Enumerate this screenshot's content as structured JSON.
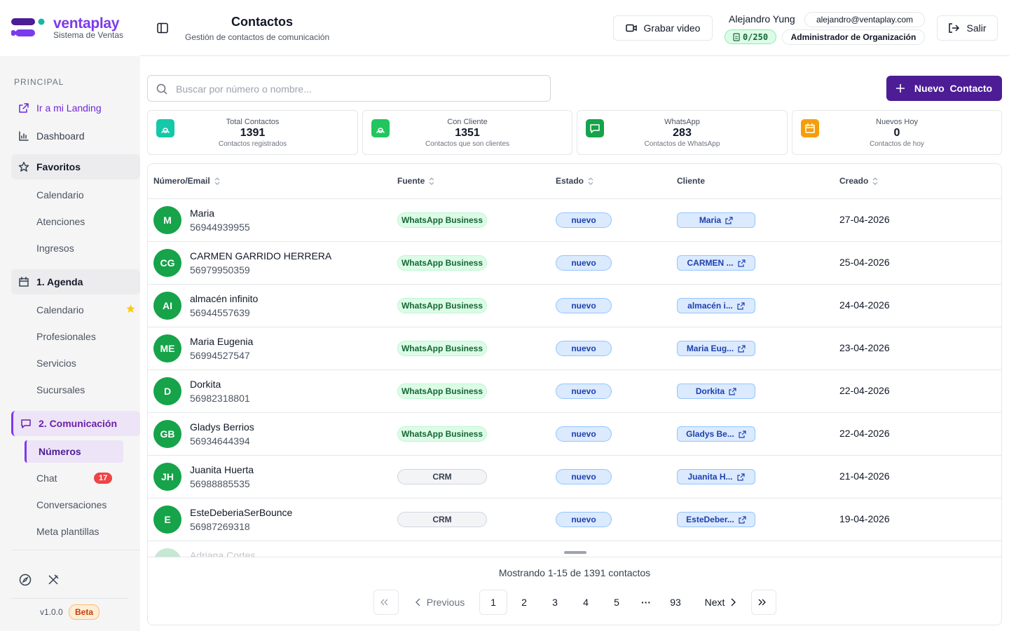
{
  "brand": {
    "name": "ventaplay",
    "tagline": "Sistema de Ventas"
  },
  "sidebar": {
    "section": "PRINCIPAL",
    "items": [
      {
        "label": "Ir a mi Landing",
        "kind": "link",
        "accent": true
      },
      {
        "label": "Dashboard",
        "kind": "link"
      },
      {
        "label": "Favoritos",
        "kind": "group"
      },
      {
        "label": "Calendario",
        "kind": "sub"
      },
      {
        "label": "Atenciones",
        "kind": "sub"
      },
      {
        "label": "Ingresos",
        "kind": "sub"
      },
      {
        "label": "1. Agenda",
        "kind": "group"
      },
      {
        "label": "Calendario",
        "kind": "sub",
        "starred": true
      },
      {
        "label": "Profesionales",
        "kind": "sub"
      },
      {
        "label": "Servicios",
        "kind": "sub"
      },
      {
        "label": "Sucursales",
        "kind": "sub"
      },
      {
        "label": "2. Comunicación",
        "kind": "group",
        "active": true
      },
      {
        "label": "Números",
        "kind": "sub",
        "active": true
      },
      {
        "label": "Chat",
        "kind": "sub",
        "badge": 17
      },
      {
        "label": "Conversaciones",
        "kind": "sub"
      },
      {
        "label": "Meta plantillas",
        "kind": "sub"
      }
    ],
    "version": "v1.0.0",
    "version_tag": "Beta"
  },
  "header": {
    "title": "Contactos",
    "subtitle": "Gestión de contactos de comunicación",
    "record_button": "Grabar video",
    "user_name": "Alejandro Yung",
    "user_email": "alejandro@ventaplay.com",
    "quota": "0/250",
    "role": "Administrador de Organización",
    "logout": "Salir"
  },
  "toolbar": {
    "search_placeholder": "Buscar por número o nombre...",
    "new_button": "Nuevo  Contacto"
  },
  "stats": [
    {
      "label": "Total Contactos",
      "value": 1391,
      "caption": "Contactos registrados"
    },
    {
      "label": "Con Cliente",
      "value": 1351,
      "caption": "Contactos que son clientes"
    },
    {
      "label": "WhatsApp",
      "value": 283,
      "caption": "Contactos de WhatsApp"
    },
    {
      "label": "Nuevos Hoy",
      "value": 0,
      "caption": "Contactos de hoy"
    }
  ],
  "table": {
    "columns": [
      "Número/Email",
      "Fuente",
      "Estado",
      "Cliente",
      "Creado"
    ],
    "rows": [
      {
        "initials": "M",
        "name": "Maria",
        "number": "56944939955",
        "source": "WhatsApp Business",
        "status": "nuevo",
        "client": "Maria",
        "created": "27-04-2026"
      },
      {
        "initials": "CG",
        "name": "CARMEN GARRIDO HERRERA",
        "number": "56979950359",
        "source": "WhatsApp Business",
        "status": "nuevo",
        "client": "CARMEN ...",
        "created": "25-04-2026"
      },
      {
        "initials": "AI",
        "name": "almacén infinito",
        "number": "56944557639",
        "source": "WhatsApp Business",
        "status": "nuevo",
        "client": "almacén i...",
        "created": "24-04-2026"
      },
      {
        "initials": "ME",
        "name": "Maria Eugenia",
        "number": "56994527547",
        "source": "WhatsApp Business",
        "status": "nuevo",
        "client": "Maria Eug...",
        "created": "23-04-2026"
      },
      {
        "initials": "D",
        "name": "Dorkita",
        "number": "56982318801",
        "source": "WhatsApp Business",
        "status": "nuevo",
        "client": "Dorkita",
        "created": "22-04-2026"
      },
      {
        "initials": "GB",
        "name": "Gladys Berrios",
        "number": "56934644394",
        "source": "WhatsApp Business",
        "status": "nuevo",
        "client": "Gladys Be...",
        "created": "22-04-2026"
      },
      {
        "initials": "JH",
        "name": "Juanita Huerta",
        "number": "56988885535",
        "source": "CRM",
        "status": "nuevo",
        "client": "Juanita H...",
        "created": "21-04-2026"
      },
      {
        "initials": "E",
        "name": "EsteDeberiaSerBounce",
        "number": "56987269318",
        "source": "CRM",
        "status": "nuevo",
        "client": "EsteDeber...",
        "created": "19-04-2026"
      }
    ],
    "partial_row": {
      "name": "Adriana Cortes"
    }
  },
  "footer": {
    "summary": "Mostrando 1-15 de 1391 contactos",
    "previous": "Previous",
    "pages": [
      "1",
      "2",
      "3",
      "4",
      "5"
    ],
    "ellipsis": "···",
    "last_page": "93",
    "next": "Next"
  }
}
